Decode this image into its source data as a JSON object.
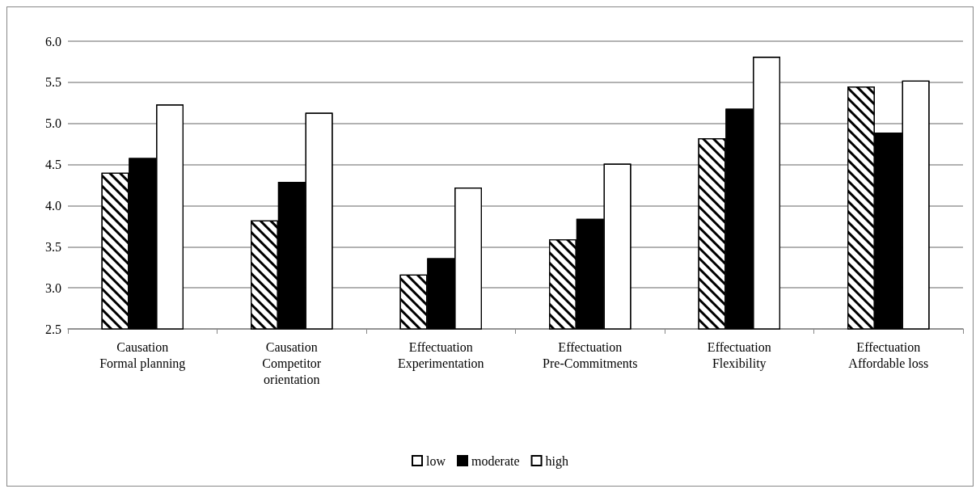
{
  "chart_data": {
    "type": "bar",
    "categories": [
      "Causation\nFormal planning",
      "Causation\nCompetitor\norientation",
      "Effectuation\nExperimentation",
      "Effectuation\nPre-Commitments",
      "Effectuation\nFlexibility",
      "Effectuation\nAffordable loss"
    ],
    "series": [
      {
        "name": "low",
        "color": "#ffffff",
        "values": [
          4.4,
          3.82,
          3.16,
          3.59,
          4.82,
          5.45
        ]
      },
      {
        "name": "moderate",
        "color": "#000000",
        "values": [
          4.58,
          4.29,
          3.36,
          3.84,
          5.18,
          4.89
        ]
      },
      {
        "name": "high",
        "color": "#ffffff",
        "values": [
          5.23,
          5.13,
          4.22,
          4.51,
          5.81,
          5.52
        ]
      }
    ],
    "ylim": [
      2.5,
      6.0
    ],
    "yticks": [
      2.5,
      {
        "value": 3,
        "label": "3.0"
      },
      3.5,
      {
        "value": 4,
        "label": "4.0"
      },
      4.5,
      {
        "value": 5,
        "label": "5.0"
      },
      5.5,
      {
        "value": 6,
        "label": "6.0"
      }
    ],
    "grid": "y",
    "legend": "bottom"
  }
}
